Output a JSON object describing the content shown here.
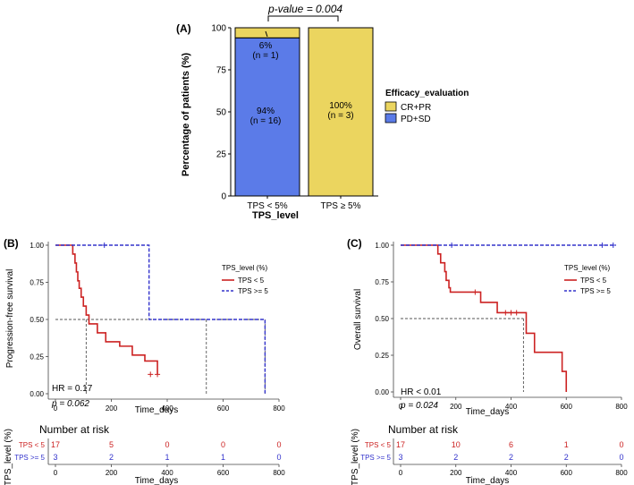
{
  "colors": {
    "cr_pr": "#EBD55F",
    "pd_sd": "#5B7BE8",
    "tps_lt5": "#CC2222",
    "tps_ge5": "#3333CC",
    "grid": "#555555"
  },
  "chart_data": [
    {
      "id": "A",
      "type": "bar",
      "panel_label": "(A)",
      "title": "p-value = 0.004",
      "xlabel": "TPS_level",
      "ylabel": "Percentage of patients (%)",
      "categories": [
        "TPS < 5%",
        "TPS ≥ 5%"
      ],
      "ylim": [
        0,
        100
      ],
      "yticks": [
        0,
        25,
        50,
        75,
        100
      ],
      "series": [
        {
          "name": "PD+SD",
          "values": [
            94,
            0
          ]
        },
        {
          "name": "CR+PR",
          "values": [
            6,
            100
          ]
        }
      ],
      "annotations": [
        {
          "category": 0,
          "series": "CR+PR",
          "pct": "6%",
          "n": "(n = 1)"
        },
        {
          "category": 0,
          "series": "PD+SD",
          "pct": "94%",
          "n": "(n = 16)"
        },
        {
          "category": 1,
          "series": "CR+PR",
          "pct": "100%",
          "n": "(n = 3)"
        }
      ],
      "legend": {
        "title": "Efficacy_evaluation",
        "items": [
          "CR+PR",
          "PD+SD"
        ],
        "position": "right"
      }
    },
    {
      "id": "B",
      "type": "line",
      "panel_label": "(B)",
      "xlabel": "Time_days",
      "ylabel": "Progression-free survival",
      "xlim": [
        0,
        800
      ],
      "ylim": [
        0,
        1
      ],
      "xticks": [
        0,
        200,
        400,
        600,
        800
      ],
      "yticks": [
        "0.00",
        "0.25",
        "0.50",
        "0.75",
        "1.00"
      ],
      "legend": {
        "title": "TPS_level (%)",
        "items": [
          "TPS < 5",
          "TPS >= 5"
        ],
        "position": "right"
      },
      "series": [
        {
          "name": "TPS < 5",
          "x": [
            0,
            55,
            62,
            70,
            75,
            80,
            85,
            92,
            100,
            110,
            120,
            150,
            180,
            230,
            275,
            320,
            365
          ],
          "y": [
            1,
            1,
            0.94,
            0.88,
            0.82,
            0.76,
            0.71,
            0.65,
            0.59,
            0.53,
            0.47,
            0.41,
            0.35,
            0.32,
            0.26,
            0.22,
            0.13
          ],
          "censor_x": [
            340,
            365
          ],
          "censor_y": [
            0.13,
            0.13
          ]
        },
        {
          "name": "TPS >= 5",
          "x": [
            0,
            335,
            335,
            750,
            750
          ],
          "y": [
            1,
            1,
            0.5,
            0.5,
            0
          ],
          "censor_x": [
            175
          ],
          "censor_y": [
            1
          ]
        }
      ],
      "median_lines": [
        {
          "x": 110,
          "y": 0.5
        },
        {
          "x": 540,
          "y": 0.5
        },
        {
          "x": 750,
          "y": 0.5
        }
      ],
      "hr_text": "HR = 0.17",
      "p_text": "p = 0.062"
    },
    {
      "id": "C",
      "type": "line",
      "panel_label": "(C)",
      "xlabel": "Time_days",
      "ylabel": "Overall survival",
      "xlim": [
        0,
        800
      ],
      "ylim": [
        0,
        1
      ],
      "xticks": [
        0,
        200,
        400,
        600,
        800
      ],
      "yticks": [
        "0.00",
        "0.25",
        "0.50",
        "0.75",
        "1.00"
      ],
      "legend": {
        "title": "TPS_level (%)",
        "items": [
          "TPS < 5",
          "TPS >= 5"
        ],
        "position": "right"
      },
      "series": [
        {
          "name": "TPS < 5",
          "x": [
            0,
            135,
            145,
            160,
            165,
            175,
            180,
            290,
            350,
            440,
            455,
            485,
            585,
            600
          ],
          "y": [
            1,
            0.94,
            0.88,
            0.82,
            0.76,
            0.71,
            0.68,
            0.61,
            0.54,
            0.54,
            0.4,
            0.27,
            0.14,
            0
          ],
          "censor_x": [
            270,
            380,
            400,
            420
          ],
          "censor_y": [
            0.68,
            0.54,
            0.54,
            0.54
          ]
        },
        {
          "name": "TPS >= 5",
          "x": [
            0,
            780
          ],
          "y": [
            1,
            1
          ],
          "censor_x": [
            185,
            730,
            770
          ],
          "censor_y": [
            1,
            1,
            1
          ]
        }
      ],
      "median_lines": [
        {
          "x": 445,
          "y": 0.5
        }
      ],
      "hr_text": "HR < 0.01",
      "p_text": "p = 0.024"
    }
  ],
  "risk_tables": [
    {
      "id": "B",
      "title": "Number at risk",
      "ylabel": "TPS_level (%)",
      "xlabel": "Time_days",
      "xticks": [
        0,
        200,
        400,
        600,
        800
      ],
      "rows": [
        {
          "label": "TPS < 5",
          "values": [
            "17",
            "5",
            "0",
            "0",
            "0"
          ]
        },
        {
          "label": "TPS >= 5",
          "values": [
            "3",
            "2",
            "1",
            "1",
            "0"
          ]
        }
      ]
    },
    {
      "id": "C",
      "title": "Number at risk",
      "ylabel": "TPS_level (%)",
      "xlabel": "Time_days",
      "xticks": [
        0,
        200,
        400,
        600,
        800
      ],
      "rows": [
        {
          "label": "TPS < 5",
          "values": [
            "17",
            "10",
            "6",
            "1",
            "0"
          ]
        },
        {
          "label": "TPS >= 5",
          "values": [
            "3",
            "2",
            "2",
            "2",
            "0"
          ]
        }
      ]
    }
  ]
}
